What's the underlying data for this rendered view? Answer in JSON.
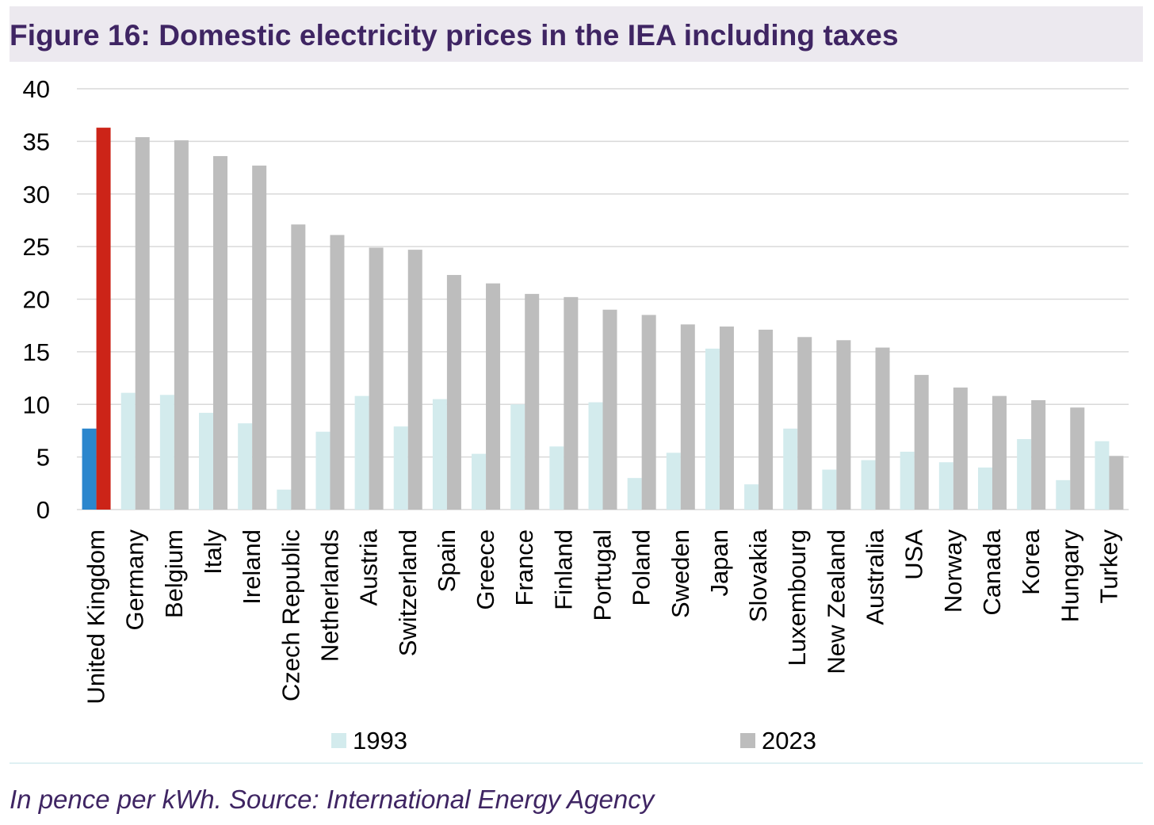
{
  "header": {
    "title": "Figure 16: Domestic electricity prices in the IEA including taxes"
  },
  "footer": {
    "source": "In pence per kWh. Source: International Energy Agency"
  },
  "colors": {
    "series_1993": "#d3ebed",
    "series_2023": "#bdbdbd",
    "uk_1993": "#2b86cd",
    "uk_2023": "#cc2418",
    "grid": "#d9d9d9",
    "title": "#3f2563"
  },
  "chart_data": {
    "type": "bar",
    "ylim": [
      0,
      40
    ],
    "yticks": [
      0,
      5,
      10,
      15,
      20,
      25,
      30,
      35,
      40
    ],
    "grid": true,
    "legend_position": "bottom",
    "categories": [
      "United Kingdom",
      "Germany",
      "Belgium",
      "Italy",
      "Ireland",
      "Czech Republic",
      "Netherlands",
      "Austria",
      "Switzerland",
      "Spain",
      "Greece",
      "France",
      "Finland",
      "Portugal",
      "Poland",
      "Sweden",
      "Japan",
      "Slovakia",
      "Luxembourg",
      "New Zealand",
      "Australia",
      "USA",
      "Norway",
      "Canada",
      "Korea",
      "Hungary",
      "Turkey"
    ],
    "series": [
      {
        "name": "1993",
        "values": [
          7.7,
          11.1,
          10.9,
          9.2,
          8.2,
          1.9,
          7.4,
          10.8,
          7.9,
          10.5,
          5.3,
          10.0,
          6.0,
          10.2,
          3.0,
          5.4,
          15.3,
          2.4,
          7.7,
          3.8,
          4.7,
          5.5,
          4.5,
          4.0,
          6.7,
          2.8,
          6.5
        ]
      },
      {
        "name": "2023",
        "values": [
          36.3,
          35.4,
          35.1,
          33.6,
          32.7,
          27.1,
          26.1,
          24.9,
          24.7,
          22.3,
          21.5,
          20.5,
          20.2,
          19.0,
          18.5,
          17.6,
          17.4,
          17.1,
          16.4,
          16.1,
          15.4,
          12.8,
          11.6,
          10.8,
          10.4,
          9.7,
          5.1
        ]
      }
    ]
  }
}
